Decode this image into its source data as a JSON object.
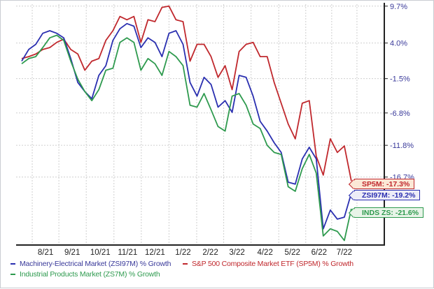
{
  "chart_data": {
    "type": "line",
    "title": "",
    "xlabel": "",
    "ylabel": "",
    "y_axis_side": "right",
    "yticks": [
      "9.7%",
      "4.0%",
      "-1.5%",
      "-6.8%",
      "-11.8%",
      "-16.7%"
    ],
    "ytick_values": [
      9.7,
      4.0,
      -1.5,
      -6.8,
      -11.8,
      -16.7
    ],
    "ylim": [
      -27.2,
      10.0
    ],
    "xticks": [
      "8/21",
      "9/21",
      "10/21",
      "11/21",
      "12/21",
      "1/22",
      "2/22",
      "3/22",
      "4/22",
      "5/22",
      "6/22",
      "7/22"
    ],
    "xtick_positions": [
      3.4,
      7.2,
      11.2,
      15.1,
      19,
      23,
      26.9,
      30.7,
      34.7,
      38.6,
      42.4,
      46
    ],
    "xlim": [
      -0.8,
      51.7
    ],
    "grid": true,
    "legend_position": "bottom",
    "series": [
      {
        "name": "Machinery-Electrical Market (ZSI97M) % Growth",
        "color": "#2a2fb0",
        "values": [
          1.2,
          3.0,
          3.8,
          5.5,
          5.9,
          5.5,
          4.8,
          1.6,
          -2.1,
          -3.5,
          -4.6,
          -1.0,
          0.5,
          4.4,
          6.2,
          7.0,
          6.6,
          3.3,
          4.8,
          4.1,
          1.9,
          5.5,
          5.9,
          3.8,
          -2.1,
          -4.2,
          -1.3,
          -2.4,
          -5.9,
          -4.9,
          -6.7,
          -1.0,
          -1.3,
          -4.2,
          -8.1,
          -9.6,
          -11.4,
          -12.9,
          -17.5,
          -17.8,
          -13.9,
          -12.1,
          -13.9,
          -24.7,
          -21.8,
          -23.2,
          -22.9,
          -19.2
        ],
        "end_label": "ZSI97M: -19.2%"
      },
      {
        "name": "S&P 500 Composite Market ETF (SP5M) % Growth",
        "color": "#c0282d",
        "values": [
          1.6,
          1.9,
          2.3,
          3.0,
          3.3,
          4.1,
          4.6,
          3.0,
          2.3,
          -0.2,
          1.2,
          1.6,
          4.4,
          5.9,
          8.1,
          7.6,
          8.1,
          4.1,
          7.6,
          7.3,
          9.5,
          9.7,
          7.6,
          7.3,
          1.2,
          3.8,
          3.8,
          1.9,
          -1.3,
          0.5,
          -3.2,
          2.7,
          3.8,
          4.1,
          1.9,
          1.9,
          -2.1,
          -5.3,
          -8.5,
          -10.8,
          -5.3,
          -4.9,
          -13.5,
          -16.4,
          -10.8,
          -12.9,
          -11.9,
          -17.3
        ],
        "end_label": "SP5M: -17.3%"
      },
      {
        "name": "Industrial Products Market (ZS7M) % Growth",
        "color": "#2e9a4e",
        "values": [
          0.8,
          1.6,
          1.9,
          3.3,
          4.8,
          5.2,
          4.4,
          1.2,
          -1.6,
          -3.5,
          -4.9,
          -3.2,
          -0.2,
          0.1,
          4.1,
          4.8,
          4.1,
          -0.2,
          1.6,
          0.8,
          -1.0,
          2.7,
          1.9,
          0.5,
          -5.6,
          -5.9,
          -3.8,
          -6.3,
          -8.9,
          -9.6,
          -4.2,
          -3.8,
          -5.6,
          -8.5,
          -9.2,
          -11.8,
          -12.9,
          -13.2,
          -18.2,
          -18.9,
          -15.4,
          -13.2,
          -16.1,
          -25.8,
          -24.7,
          -25.1,
          -26.5,
          -21.6
        ],
        "end_label": "INDS ZS: -21.6%"
      }
    ]
  }
}
